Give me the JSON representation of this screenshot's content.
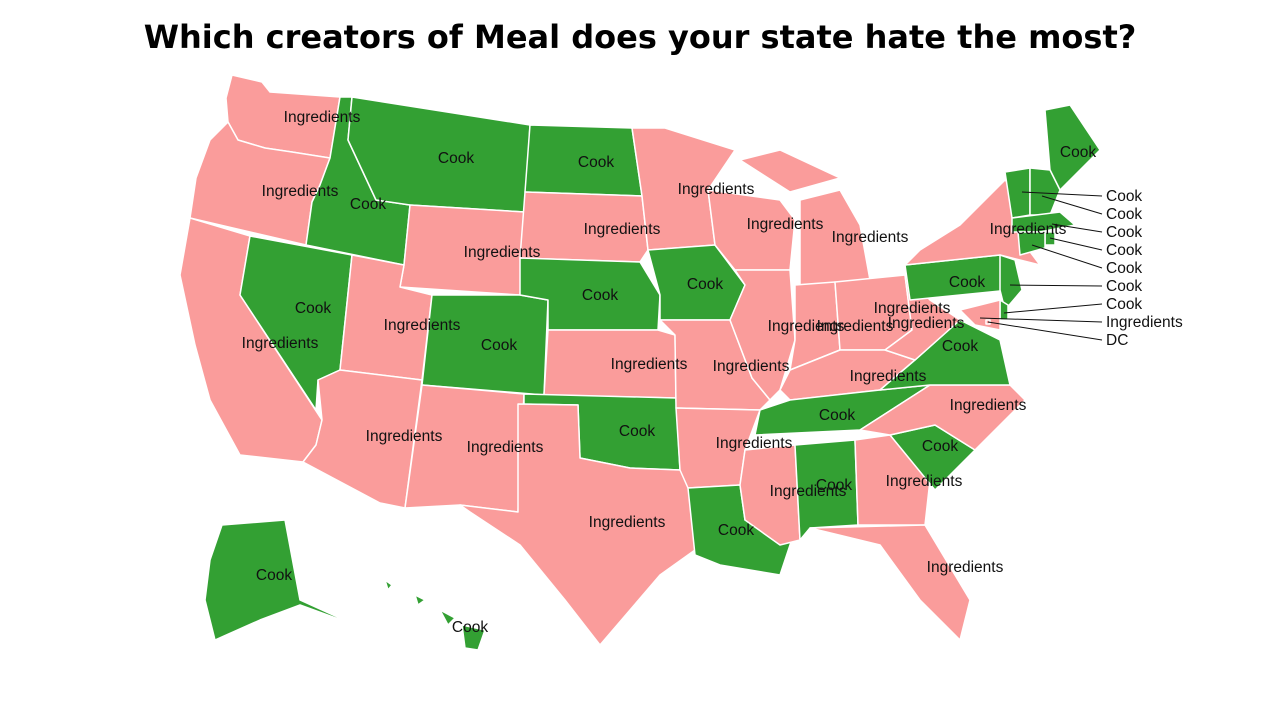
{
  "title": "Which creators of Meal does your state hate the most?",
  "colors": {
    "Ingredients": "#fa9c9b",
    "Cook": "#33a033"
  },
  "states": [
    {
      "id": "WA",
      "label": "Ingredients"
    },
    {
      "id": "OR",
      "label": "Ingredients"
    },
    {
      "id": "CA",
      "label": "Ingredients"
    },
    {
      "id": "ID",
      "label": "Cook"
    },
    {
      "id": "NV",
      "label": "Cook"
    },
    {
      "id": "MT",
      "label": "Cook"
    },
    {
      "id": "WY",
      "label": "Ingredients"
    },
    {
      "id": "UT",
      "label": "Ingredients"
    },
    {
      "id": "AZ",
      "label": "Ingredients"
    },
    {
      "id": "CO",
      "label": "Cook"
    },
    {
      "id": "NM",
      "label": "Ingredients"
    },
    {
      "id": "ND",
      "label": "Cook"
    },
    {
      "id": "SD",
      "label": "Ingredients"
    },
    {
      "id": "NE",
      "label": "Cook"
    },
    {
      "id": "KS",
      "label": "Ingredients"
    },
    {
      "id": "OK",
      "label": "Cook"
    },
    {
      "id": "TX",
      "label": "Ingredients"
    },
    {
      "id": "MN",
      "label": "Ingredients"
    },
    {
      "id": "IA",
      "label": "Cook"
    },
    {
      "id": "MO",
      "label": "Ingredients"
    },
    {
      "id": "AR",
      "label": "Ingredients"
    },
    {
      "id": "LA",
      "label": "Cook"
    },
    {
      "id": "WI",
      "label": "Ingredients"
    },
    {
      "id": "IL",
      "label": "Ingredients"
    },
    {
      "id": "MI",
      "label": "Ingredients"
    },
    {
      "id": "IN",
      "label": "Ingredients"
    },
    {
      "id": "OH",
      "label": "Ingredients"
    },
    {
      "id": "KY",
      "label": "Ingredients"
    },
    {
      "id": "TN",
      "label": "Cook"
    },
    {
      "id": "MS",
      "label": "Ingredients"
    },
    {
      "id": "AL",
      "label": "Cook"
    },
    {
      "id": "GA",
      "label": "Ingredients"
    },
    {
      "id": "FL",
      "label": "Ingredients"
    },
    {
      "id": "SC",
      "label": "Cook"
    },
    {
      "id": "NC",
      "label": "Ingredients"
    },
    {
      "id": "VA",
      "label": "Cook"
    },
    {
      "id": "WV",
      "label": "Ingredients"
    },
    {
      "id": "PA",
      "label": "Cook"
    },
    {
      "id": "NY",
      "label": "Ingredients"
    },
    {
      "id": "ME",
      "label": "Cook"
    },
    {
      "id": "VT",
      "label": "Cook"
    },
    {
      "id": "NH",
      "label": "Cook"
    },
    {
      "id": "MA",
      "label": "Cook"
    },
    {
      "id": "RI",
      "label": "Cook"
    },
    {
      "id": "CT",
      "label": "Cook"
    },
    {
      "id": "NJ",
      "label": "Cook"
    },
    {
      "id": "DE",
      "label": "Cook"
    },
    {
      "id": "MD",
      "label": "Ingredients"
    },
    {
      "id": "DC",
      "label": "DC"
    },
    {
      "id": "AK",
      "label": "Cook"
    },
    {
      "id": "HI",
      "label": "Cook"
    }
  ]
}
